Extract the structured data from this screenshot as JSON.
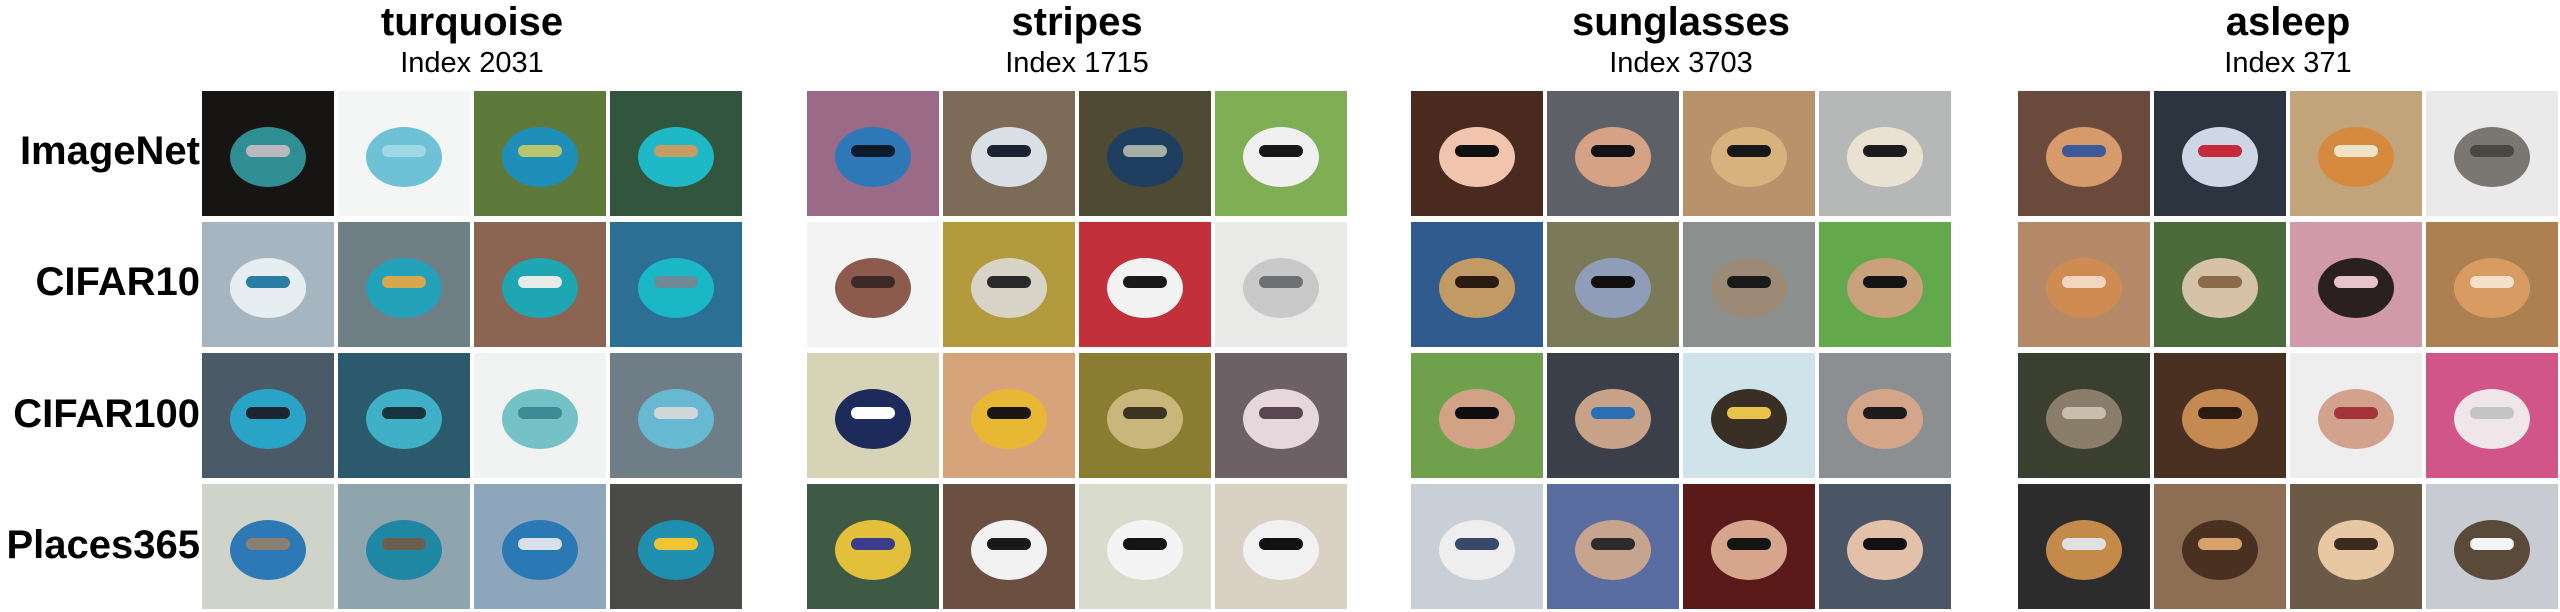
{
  "row_labels": [
    "ImageNet",
    "CIFAR10",
    "CIFAR100",
    "Places365"
  ],
  "panels": [
    {
      "title": "turquoise",
      "subtitle": "Index 2031",
      "rows": [
        [
          {
            "icon": "turquoise-bolo-tie-icon",
            "bg": "#161513",
            "fg": "#2f8f93",
            "accent": "#b9b9bd"
          },
          {
            "icon": "turquoise-yarn-icon",
            "bg": "#f4f5f5",
            "fg": "#6fc1d6",
            "accent": "#9fd7e5"
          },
          {
            "icon": "turquoise-bird-icon",
            "bg": "#5e7a3a",
            "fg": "#1e8fb8",
            "accent": "#b9c56e"
          },
          {
            "icon": "turquoise-ice-cream-icon",
            "bg": "#31553d",
            "fg": "#1fb8c7",
            "accent": "#c79c63"
          }
        ],
        [
          {
            "icon": "airplane-icon",
            "bg": "#a6b5bf",
            "fg": "#e6eef2",
            "accent": "#2a7ea4"
          },
          {
            "icon": "boat-icon",
            "bg": "#6f7f86",
            "fg": "#22a1b8",
            "accent": "#d8a64b"
          },
          {
            "icon": "truck-icon",
            "bg": "#8b6551",
            "fg": "#1fa6b3",
            "accent": "#e8ece8"
          },
          {
            "icon": "car-icon",
            "bg": "#2c6f94",
            "fg": "#1ab7c7",
            "accent": "#6e8a96"
          }
        ],
        [
          {
            "icon": "motorcycle-icon",
            "bg": "#4a5a66",
            "fg": "#2aa4c6",
            "accent": "#1c2530"
          },
          {
            "icon": "fish-icon",
            "bg": "#2b5a6c",
            "fg": "#3fb0c6",
            "accent": "#18343f"
          },
          {
            "icon": "telephone-icon",
            "bg": "#f1f3f2",
            "fg": "#74c1c6",
            "accent": "#3b8c94"
          },
          {
            "icon": "bus-icon",
            "bg": "#6f7d86",
            "fg": "#67b9d1",
            "accent": "#cfd7d9"
          }
        ],
        [
          {
            "icon": "airplane-icon",
            "bg": "#cfd3c9",
            "fg": "#2d79b6",
            "accent": "#8a7f70"
          },
          {
            "icon": "train-icon",
            "bg": "#8fa5ae",
            "fg": "#1f86a4",
            "accent": "#6b5d4e"
          },
          {
            "icon": "airplane-icon",
            "bg": "#8ea6bc",
            "fg": "#2a78b4",
            "accent": "#d9e2ea"
          },
          {
            "icon": "train-icon",
            "bg": "#4a4a46",
            "fg": "#1f8fb0",
            "accent": "#f0c431"
          }
        ]
      ]
    },
    {
      "title": "stripes",
      "subtitle": "Index 1715",
      "rows": [
        [
          {
            "icon": "striped-snake-icon",
            "bg": "#9a6a86",
            "fg": "#2e78b8",
            "accent": "#0d1a2a"
          },
          {
            "icon": "striped-snake-icon",
            "bg": "#7b6b57",
            "fg": "#d8dfe5",
            "accent": "#1b2330"
          },
          {
            "icon": "striped-snake-icon",
            "bg": "#4e4a34",
            "fg": "#1e3f5f",
            "accent": "#a4b0a6"
          },
          {
            "icon": "zebra-icon",
            "bg": "#7fae54",
            "fg": "#f0f0f0",
            "accent": "#161616"
          }
        ],
        [
          {
            "icon": "ship-icon",
            "bg": "#f3f3f3",
            "fg": "#8c5b4e",
            "accent": "#3b2a26"
          },
          {
            "icon": "car-icon",
            "bg": "#b39a3d",
            "fg": "#d7d3c6",
            "accent": "#2a2a2a"
          },
          {
            "icon": "checkered-floor-icon",
            "bg": "#c2303c",
            "fg": "#f2f2f2",
            "accent": "#1a1a1a"
          },
          {
            "icon": "car-icon",
            "bg": "#e9eae8",
            "fg": "#c8c9c8",
            "accent": "#6e7172"
          }
        ],
        [
          {
            "icon": "striped-ball-icon",
            "bg": "#d7d3b6",
            "fg": "#1c2a5c",
            "accent": "#ffffff"
          },
          {
            "icon": "bee-icon",
            "bg": "#d6a37a",
            "fg": "#e8b834",
            "accent": "#1a1510"
          },
          {
            "icon": "striped-fish-icon",
            "bg": "#8a7c31",
            "fg": "#c9b67b",
            "accent": "#3b3420"
          },
          {
            "icon": "snail-icon",
            "bg": "#6d6166",
            "fg": "#e6d7dc",
            "accent": "#5a4553"
          }
        ],
        [
          {
            "icon": "striped-fish-icon",
            "bg": "#3e5a45",
            "fg": "#e3c03b",
            "accent": "#3b3d8a"
          },
          {
            "icon": "checkered-table-icon",
            "bg": "#6b4f40",
            "fg": "#f2f2f2",
            "accent": "#1a1a1a"
          },
          {
            "icon": "zebra-crib-icon",
            "bg": "#d9dccd",
            "fg": "#f4f4f4",
            "accent": "#141414"
          },
          {
            "icon": "striped-rug-icon",
            "bg": "#d9d2c4",
            "fg": "#f1f1f1",
            "accent": "#121212"
          }
        ]
      ]
    },
    {
      "title": "sunglasses",
      "subtitle": "Index 3703",
      "rows": [
        [
          {
            "icon": "baby-sunglasses-icon",
            "bg": "#4a2a1e",
            "fg": "#f0c4ad",
            "accent": "#101010"
          },
          {
            "icon": "face-sunglasses-icon",
            "bg": "#5e6068",
            "fg": "#d6a286",
            "accent": "#121212"
          },
          {
            "icon": "dog-sunglasses-icon",
            "bg": "#b8926a",
            "fg": "#d8b27c",
            "accent": "#171717"
          },
          {
            "icon": "person-sunglasses-icon",
            "bg": "#b6b8b8",
            "fg": "#e9e2d2",
            "accent": "#1c1c1c"
          }
        ],
        [
          {
            "icon": "dog-sunglasses-icon",
            "bg": "#2f5b8f",
            "fg": "#c29a63",
            "accent": "#2a1a10"
          },
          {
            "icon": "cat-sunglasses-icon",
            "bg": "#7a7a58",
            "fg": "#8f9db8",
            "accent": "#101010"
          },
          {
            "icon": "cat-sunglasses-icon",
            "bg": "#8b8f8e",
            "fg": "#9b8a75",
            "accent": "#1a1a1a"
          },
          {
            "icon": "deer-sunglasses-icon",
            "bg": "#63a84a",
            "fg": "#c9a27c",
            "accent": "#151515"
          }
        ],
        [
          {
            "icon": "man-sunglasses-icon",
            "bg": "#6fa04b",
            "fg": "#d1a285",
            "accent": "#0e0e0e"
          },
          {
            "icon": "man-sunglasses-icon",
            "bg": "#3b3f4a",
            "fg": "#c9a28a",
            "accent": "#2a6fb6"
          },
          {
            "icon": "chimp-icon",
            "bg": "#cfe3ea",
            "fg": "#3a2f24",
            "accent": "#e9c44b"
          },
          {
            "icon": "woman-sunglasses-icon",
            "bg": "#8c8f92",
            "fg": "#d5a58a",
            "accent": "#1b1b1b"
          }
        ],
        [
          {
            "icon": "taj-mahal-icon",
            "bg": "#c9cfd6",
            "fg": "#eeeeee",
            "accent": "#3a4a6a"
          },
          {
            "icon": "woman-sunglasses-icon",
            "bg": "#5a6da0",
            "fg": "#c6a48e",
            "accent": "#2b2b2b"
          },
          {
            "icon": "couple-sunglasses-icon",
            "bg": "#5a1a1a",
            "fg": "#d6a58c",
            "accent": "#141414"
          },
          {
            "icon": "woman-car-sunglasses-icon",
            "bg": "#4a5566",
            "fg": "#e3c1a8",
            "accent": "#101010"
          }
        ]
      ]
    },
    {
      "title": "asleep",
      "subtitle": "Index 371",
      "rows": [
        [
          {
            "icon": "sleeping-child-dog-icon",
            "bg": "#6a4a3a",
            "fg": "#d79a6a",
            "accent": "#3a5a9a"
          },
          {
            "icon": "sleeping-child-car-icon",
            "bg": "#2c3440",
            "fg": "#cfd7e6",
            "accent": "#c42a3a"
          },
          {
            "icon": "sleeping-fox-icon",
            "bg": "#c2a47a",
            "fg": "#d68a3f",
            "accent": "#f2e2c6"
          },
          {
            "icon": "sleeping-dog-icon",
            "bg": "#eaeaea",
            "fg": "#7a7672",
            "accent": "#4a4642"
          }
        ],
        [
          {
            "icon": "sleeping-puppy-icon",
            "bg": "#b38968",
            "fg": "#cf8c52",
            "accent": "#f2d6c0"
          },
          {
            "icon": "sleeping-dog-icon",
            "bg": "#4a6a3a",
            "fg": "#d6c2a6",
            "accent": "#8a6a4a"
          },
          {
            "icon": "sleeping-dog-icon",
            "bg": "#d19aaa",
            "fg": "#2a2020",
            "accent": "#e8c2cc"
          },
          {
            "icon": "sleeping-puppy-icon",
            "bg": "#ad8052",
            "fg": "#d89c62",
            "accent": "#f4dfc8"
          }
        ],
        [
          {
            "icon": "hedgehog-icon",
            "bg": "#3b3f30",
            "fg": "#8a7d6a",
            "accent": "#c9bfae"
          },
          {
            "icon": "sleeping-cat-icon",
            "bg": "#4a3020",
            "fg": "#c48a52",
            "accent": "#2a1a10"
          },
          {
            "icon": "sleeping-child-icon",
            "bg": "#eeeeee",
            "fg": "#d3a28c",
            "accent": "#a4343a"
          },
          {
            "icon": "sleeping-cat-pillow-icon",
            "bg": "#d2558a",
            "fg": "#f0e6ea",
            "accent": "#c4c4c4"
          }
        ],
        [
          {
            "icon": "sleeping-dog-car-icon",
            "bg": "#2c2c2c",
            "fg": "#c48a4a",
            "accent": "#e1e1e1"
          },
          {
            "icon": "sleeping-dog-icon",
            "bg": "#8e6e52",
            "fg": "#4a3020",
            "accent": "#d7a26a"
          },
          {
            "icon": "sleeping-puppy-icon",
            "bg": "#6a5a46",
            "fg": "#e8c8a2",
            "accent": "#3a2a20"
          },
          {
            "icon": "sleeping-person-desk-icon",
            "bg": "#c8ccd2",
            "fg": "#5a4a3a",
            "accent": "#f4f4f4"
          }
        ]
      ]
    }
  ]
}
